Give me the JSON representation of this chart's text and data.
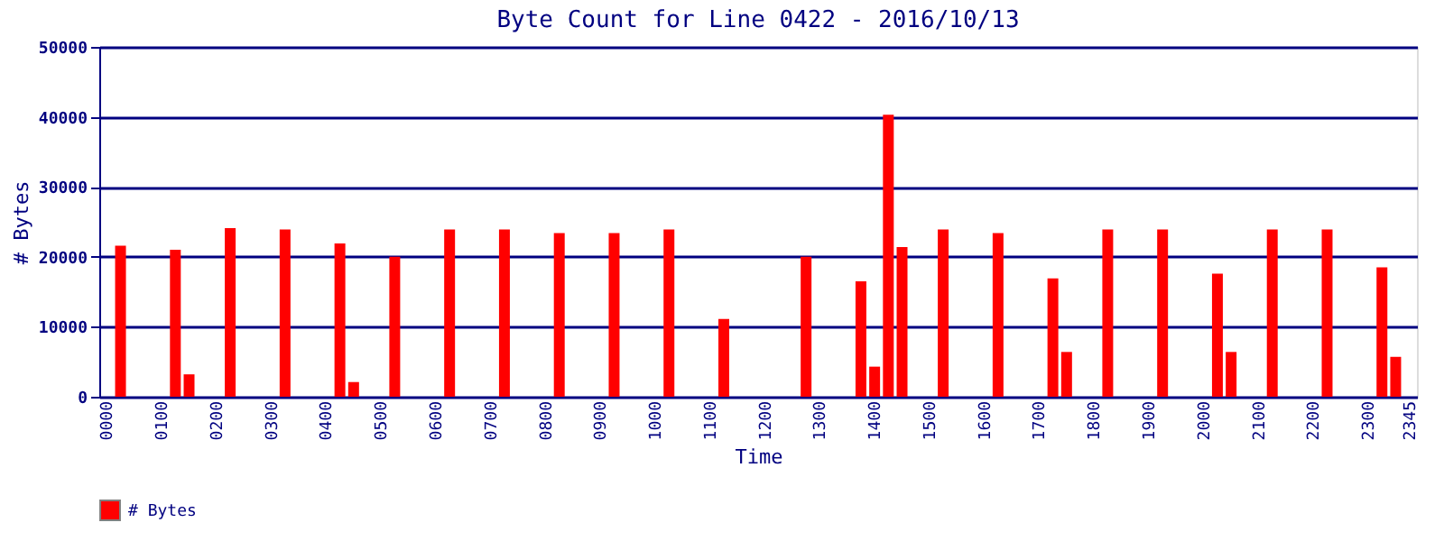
{
  "chart_data": {
    "type": "bar",
    "title": "Byte Count for Line 0422 - 2016/10/13",
    "xlabel": "Time",
    "ylabel": "# Bytes",
    "categories": [
      "0000",
      null,
      null,
      null,
      "0100",
      null,
      null,
      null,
      "0200",
      null,
      null,
      null,
      "0300",
      null,
      null,
      null,
      "0400",
      null,
      null,
      null,
      "0500",
      null,
      null,
      null,
      "0600",
      null,
      null,
      null,
      "0700",
      null,
      null,
      null,
      "0800",
      null,
      null,
      null,
      "0900",
      null,
      null,
      null,
      "1000",
      null,
      null,
      null,
      "1100",
      null,
      null,
      null,
      "1200",
      null,
      null,
      null,
      "1300",
      null,
      null,
      null,
      "1400",
      null,
      null,
      null,
      "1500",
      null,
      null,
      null,
      "1600",
      null,
      null,
      null,
      "1700",
      null,
      null,
      null,
      "1800",
      null,
      null,
      null,
      "1900",
      null,
      null,
      null,
      "2000",
      null,
      null,
      null,
      "2100",
      null,
      null,
      null,
      "2200",
      null,
      null,
      null,
      "2300",
      null,
      null,
      "2345"
    ],
    "series": [
      {
        "name": "# Bytes",
        "color": "#ff0000",
        "values": [
          null,
          21600,
          null,
          null,
          null,
          21000,
          3200,
          null,
          null,
          24100,
          null,
          null,
          null,
          23900,
          null,
          null,
          null,
          21900,
          2100,
          null,
          null,
          20000,
          null,
          null,
          null,
          23900,
          null,
          null,
          null,
          23900,
          null,
          null,
          null,
          23400,
          null,
          null,
          null,
          23400,
          null,
          null,
          null,
          23900,
          null,
          null,
          null,
          11100,
          null,
          null,
          null,
          null,
          null,
          20000,
          null,
          null,
          null,
          16500,
          4300,
          40300,
          21400,
          null,
          null,
          23900,
          null,
          null,
          null,
          23400,
          null,
          null,
          null,
          16900,
          6400,
          null,
          null,
          23900,
          null,
          null,
          null,
          23900,
          null,
          null,
          null,
          17600,
          6400,
          null,
          null,
          23900,
          null,
          null,
          null,
          23900,
          null,
          null,
          null,
          18500,
          5700,
          null
        ]
      }
    ],
    "ylim": [
      0,
      50000
    ],
    "yticks": [
      0,
      10000,
      20000,
      30000,
      40000,
      50000
    ],
    "grid": "y",
    "legend": "bottom"
  }
}
